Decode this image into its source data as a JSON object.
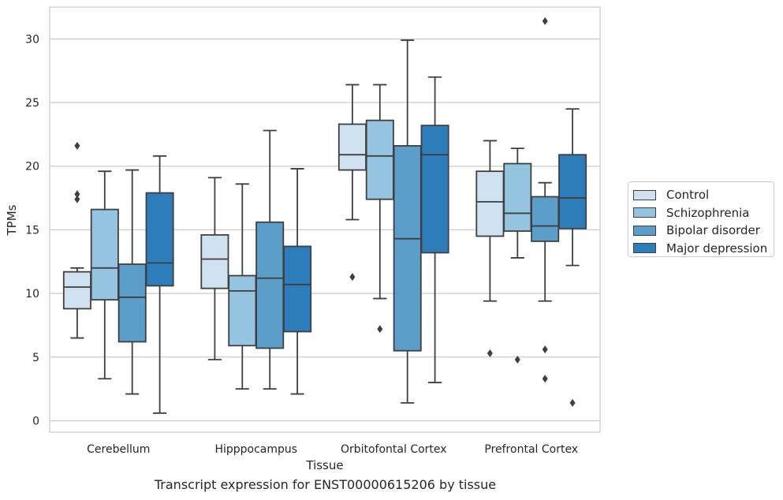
{
  "chart_data": {
    "type": "box",
    "title": "",
    "caption": "Transcript expression for ENST00000615206 by tissue",
    "xlabel": "Tissue",
    "ylabel": "TPMs",
    "ylim": [
      -0.9,
      32.5
    ],
    "yticks": [
      0,
      5,
      10,
      15,
      20,
      25,
      30
    ],
    "grid": "horizontal",
    "legend_position": "right",
    "categories": [
      "Cerebellum",
      "Hipppocampus",
      "Orbitofontal Cortex",
      "Prefrontal Cortex"
    ],
    "series": [
      {
        "name": "Control",
        "color": "#d0e1f2",
        "boxes": [
          {
            "whislo": 6.5,
            "q1": 8.8,
            "med": 10.5,
            "q3": 11.7,
            "whishi": 12.0,
            "fliers": [
              17.4,
              17.8,
              21.6
            ]
          },
          {
            "whislo": 4.8,
            "q1": 10.4,
            "med": 12.7,
            "q3": 14.6,
            "whishi": 19.1,
            "fliers": []
          },
          {
            "whislo": 15.8,
            "q1": 19.7,
            "med": 20.9,
            "q3": 23.3,
            "whishi": 26.4,
            "fliers": [
              11.3
            ]
          },
          {
            "whislo": 9.4,
            "q1": 14.5,
            "med": 17.2,
            "q3": 19.6,
            "whishi": 22.0,
            "fliers": [
              5.3
            ]
          }
        ]
      },
      {
        "name": "Schizophrenia",
        "color": "#94c4df",
        "boxes": [
          {
            "whislo": 3.3,
            "q1": 9.5,
            "med": 12.0,
            "q3": 16.6,
            "whishi": 19.6,
            "fliers": []
          },
          {
            "whislo": 2.5,
            "q1": 5.9,
            "med": 10.2,
            "q3": 11.4,
            "whishi": 18.6,
            "fliers": []
          },
          {
            "whislo": 9.6,
            "q1": 17.4,
            "med": 20.8,
            "q3": 23.6,
            "whishi": 26.4,
            "fliers": [
              7.2
            ]
          },
          {
            "whislo": 12.8,
            "q1": 14.9,
            "med": 16.3,
            "q3": 20.2,
            "whishi": 21.4,
            "fliers": [
              4.8
            ]
          }
        ]
      },
      {
        "name": "Bipolar disorder",
        "color": "#5b9ec9",
        "boxes": [
          {
            "whislo": 2.1,
            "q1": 6.2,
            "med": 9.7,
            "q3": 12.3,
            "whishi": 19.7,
            "fliers": []
          },
          {
            "whislo": 2.5,
            "q1": 5.7,
            "med": 11.2,
            "q3": 15.6,
            "whishi": 22.8,
            "fliers": []
          },
          {
            "whislo": 1.4,
            "q1": 5.5,
            "med": 14.3,
            "q3": 21.6,
            "whishi": 29.9,
            "fliers": []
          },
          {
            "whislo": 9.4,
            "q1": 14.1,
            "med": 15.3,
            "q3": 17.6,
            "whishi": 18.7,
            "fliers": [
              3.3,
              5.6,
              31.4
            ]
          }
        ]
      },
      {
        "name": "Major depression",
        "color": "#2d7dbb",
        "boxes": [
          {
            "whislo": 0.6,
            "q1": 10.6,
            "med": 12.4,
            "q3": 17.9,
            "whishi": 20.8,
            "fliers": []
          },
          {
            "whislo": 2.1,
            "q1": 7.0,
            "med": 10.7,
            "q3": 13.7,
            "whishi": 19.8,
            "fliers": []
          },
          {
            "whislo": 3.0,
            "q1": 13.2,
            "med": 20.9,
            "q3": 23.2,
            "whishi": 27.0,
            "fliers": []
          },
          {
            "whislo": 12.2,
            "q1": 15.1,
            "med": 17.5,
            "q3": 20.9,
            "whishi": 24.5,
            "fliers": [
              1.4
            ]
          }
        ]
      }
    ]
  }
}
